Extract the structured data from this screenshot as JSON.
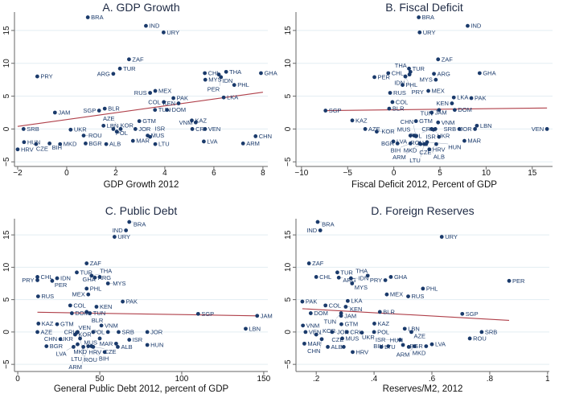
{
  "colors": {
    "point": "#1a3a6b",
    "fit": "#b0404a",
    "grid": "#e3edf2",
    "axis": "#666666"
  },
  "y_values": {
    "BRA": 17,
    "IND": 15.7,
    "URY": 14.7,
    "ZAF": 10.6,
    "TUR": 9.2,
    "THA": 8.7,
    "CHL": 8.5,
    "GHA": 8.5,
    "ARG": 8.4,
    "IDN": 8.3,
    "PRY": 8.0,
    "PER": 7.9,
    "MYS": 7.5,
    "PHL": 6.7,
    "MEX": 5.8,
    "RUS": 5.5,
    "LKA": 4.8,
    "PAK": 4.7,
    "COL": 4.1,
    "KEN": 3.9,
    "BLR": 3.1,
    "TUN": 2.9,
    "DOM": 2.9,
    "SGP": 2.8,
    "JAM": 2.5,
    "KAZ": 1.3,
    "GTM": 1.2,
    "VNM": 1.0,
    "LBN": 0.5,
    "SRB": 0,
    "JOR": 0,
    "CRI": 0,
    "VEN": 0,
    "AZE": 0,
    "POL": 0,
    "UKR": -0.1,
    "KOR": -0.4,
    "ROU": -1,
    "MUS": -1,
    "CHN": -1.1,
    "ISR": -1.2,
    "MAR": -1.8,
    "LVA": -1.9,
    "HUN": -2,
    "BIH": -2.2,
    "BGR": -2.2,
    "ARM": -2.2,
    "CZE": -2.3,
    "MKD": -2.3,
    "ALB": -2.3,
    "LTU": -2.3,
    "HRV": -3.1
  },
  "chart_data": [
    {
      "type": "scatter",
      "title": "A. GDP Growth",
      "xlabel": "GDP Growth 2012",
      "ylabel": "",
      "xlim": [
        -2.13,
        8.2
      ],
      "ylim": [
        -5.7,
        17.8
      ],
      "xticks": [
        -2,
        0,
        2,
        4,
        6,
        8
      ],
      "xtick_labels": [
        "−2",
        "0",
        "2",
        "4",
        "6",
        "8"
      ],
      "yticks": [
        -5,
        0,
        5,
        10,
        15
      ],
      "ytick_labels": [
        "−5",
        "0",
        "5",
        "10",
        "15"
      ],
      "fit": [
        [
          -2,
          0.4
        ],
        [
          8,
          5.6
        ]
      ],
      "x": {
        "BRA": 0.86,
        "IND": 3.23,
        "URY": 3.95,
        "ZAF": 2.54,
        "TUR": 2.17,
        "ARG": 1.9,
        "PRY": -1.2,
        "CHL": 5.63,
        "THA": 6.5,
        "IDN": 6.2,
        "GHA": 7.92,
        "PER": 6.29,
        "MYS": 5.65,
        "PHL": 6.83,
        "MEX": 3.61,
        "RUS": 3.4,
        "PAK": 4.35,
        "LKA": 6.4,
        "COL": 3.96,
        "KEN": 4.56,
        "BLR": 1.55,
        "SGP": 1.32,
        "TUN": 3.6,
        "DOM": 4.09,
        "JAM": -0.48,
        "GTM": 2.96,
        "KAZ": 5.1,
        "VNM": 5.26,
        "LBN": 1.5,
        "SRB": -1.76,
        "UKR": 0.16,
        "JOR": 2.8,
        "CRI": 5.12,
        "VEN": 5.64,
        "AZE": 2.2,
        "POL": 1.9,
        "KOR": 2.04,
        "ROU": 0.69,
        "MUS": 3.3,
        "ISR": 3.4,
        "CHN": 7.7,
        "HUN": -1.74,
        "CZE": -1.25,
        "BIH": -0.7,
        "MKD": -0.27,
        "BGR": 0.77,
        "ALB": 1.61,
        "MAR": 2.7,
        "LTU": 3.61,
        "LVA": 5.59,
        "ARM": 7.19,
        "HRV": -2.0
      }
    },
    {
      "type": "scatter",
      "title": "B. Fiscal Deficit",
      "xlabel": "Fiscal Deficit 2012, Percent of GDP",
      "ylabel": "",
      "xlim": [
        -10.6,
        17.2
      ],
      "ylim": [
        -5.7,
        17.8
      ],
      "xticks": [
        -10,
        -5,
        0,
        5,
        10,
        15
      ],
      "xtick_labels": [
        "−10",
        "−5",
        "0",
        "5",
        "10",
        "15"
      ],
      "yticks": [
        -5,
        0,
        5,
        10,
        15
      ],
      "ytick_labels": [
        "−5",
        "0",
        "5",
        "10",
        "15"
      ],
      "fit": [
        [
          -7.4,
          2.8
        ],
        [
          16.6,
          3.2
        ]
      ],
      "x": {
        "BRA": 2.7,
        "IND": 8.0,
        "URY": 2.8,
        "ZAF": 4.8,
        "TUR": 1.65,
        "THA": 1.8,
        "IDN": 1.7,
        "CHL": -0.6,
        "PER": -2.1,
        "PRY": 1.25,
        "ARG": 4.35,
        "GHA": 9.3,
        "MYS": 4.55,
        "PHL": 0.95,
        "MEX": 3.74,
        "RUS": -0.4,
        "LKA": 6.5,
        "PAK": 8.4,
        "KEN": 6.3,
        "COL": -0.15,
        "SGP": -7.4,
        "BLR": -0.5,
        "TUN": 4.9,
        "DOM": 6.6,
        "JAM": 4.1,
        "KAZ": -4.5,
        "GTM": 2.4,
        "VNM": 4.8,
        "LBN": 9.0,
        "JOR": 8.8,
        "SRB": 7.1,
        "VEN": 16.6,
        "AZE": -3.1,
        "KOR": -1.85,
        "ISR": 4.9,
        "MAR": 7.65,
        "HRV": 3.85,
        "LVA": -0.05,
        "CRI": 4.5,
        "POL": 4.1,
        "UKR": 4.3,
        "MUS": 2.2,
        "ROU": 1.8,
        "CHN": 2.4,
        "HUN": 3.6,
        "CZE": 4.6,
        "ALB": 3.5,
        "BGR": 0.4,
        "LTU": 3.3,
        "BIH": 1.8,
        "MKD": 2.9,
        "ARM": 2.8
      }
    },
    {
      "type": "scatter",
      "title": "C. Public Debt",
      "xlabel": "General Public Debt 2012, percent of GDP",
      "ylabel": "",
      "xlim": [
        -2,
        152.5
      ],
      "ylim": [
        -6.1,
        17.5
      ],
      "xticks": [
        0,
        50,
        100,
        150
      ],
      "xtick_labels": [
        "0",
        "50",
        "100",
        "150"
      ],
      "yticks": [
        -5,
        0,
        5,
        10,
        15
      ],
      "ytick_labels": [
        "−5",
        "0",
        "5",
        "10",
        "15"
      ],
      "fit": [
        [
          12,
          3.05
        ],
        [
          146,
          2.5
        ]
      ],
      "x": {
        "BRA": 68,
        "IND": 66,
        "URY": 59,
        "ZAF": 42,
        "TUR": 36,
        "THA": 45,
        "ARG": 47,
        "GHA": 50,
        "CHL": 12,
        "PRY": 12,
        "IDN": 24,
        "PER": 21,
        "MYS": 55,
        "PHL": 42,
        "MEX": 43,
        "RUS": 12.4,
        "PAK": 64,
        "COL": 32,
        "KEN": 48,
        "SGP": 110,
        "JAM": 146,
        "LBN": 139,
        "DOM": 33,
        "BLR": 42,
        "TUN": 44,
        "KAZ": 12.6,
        "GTM": 24,
        "VNM": 51,
        "AZE": 12,
        "VEN": 46,
        "POL": 55,
        "SRB": 61.5,
        "JOR": 79,
        "CHN": 26,
        "ROU": 38,
        "MUS": 50,
        "ISR": 68,
        "MAR": 60,
        "ALB": 61,
        "HUN": 79,
        "BGR": 17.5,
        "HRV": 53,
        "MKD": 34,
        "LVA": 36.5,
        "CZE": 46,
        "KOR": 35,
        "CRI": 36.5,
        "UKR": 36,
        "LTU": 40,
        "BIH": 45,
        "ARM": 43
      }
    },
    {
      "type": "scatter",
      "title": "D. Foreign Reserves",
      "xlabel": "Reserves/M2, 2012",
      "ylabel": "",
      "xlim": [
        0.13,
        1.006
      ],
      "ylim": [
        -6.1,
        17.5
      ],
      "xticks": [
        0.2,
        0.4,
        0.6,
        0.8,
        1
      ],
      "xtick_labels": [
        ".2",
        ".4",
        ".6",
        ".8",
        "1"
      ],
      "yticks": [
        -5,
        0,
        5,
        10,
        15
      ],
      "ytick_labels": [
        "−5",
        "0",
        "5",
        "10",
        "15"
      ],
      "fit": [
        [
          0.152,
          3.6
        ],
        [
          0.867,
          1.8
        ]
      ],
      "x": {
        "BRA": 0.205,
        "IND": 0.214,
        "URY": 0.634,
        "ZAF": 0.175,
        "TUR": 0.273,
        "CHL": 0.2,
        "ARG": 0.278,
        "IDN": 0.32,
        "THA": 0.378,
        "PRY": 0.439,
        "GHA": 0.458,
        "MYS": 0.324,
        "PER": 0.867,
        "PHL": 0.569,
        "MEX": 0.444,
        "RUS": 0.518,
        "PAK": 0.152,
        "LKA": 0.309,
        "COL": 0.232,
        "KEN": 0.302,
        "BLR": 0.42,
        "SGP": 0.705,
        "DOM": 0.181,
        "TUN": 0.286,
        "JAM": 0.286,
        "GTM": 0.287,
        "KAZ": 0.401,
        "VNM": 0.154,
        "VEN": 0.163,
        "KOR": 0.2,
        "CHN": 0.219,
        "JOR": 0.255,
        "CRI": 0.306,
        "MUS": 0.29,
        "POL": 0.4,
        "UKR": 0.358,
        "LBN": 0.506,
        "AZE": 0.529,
        "SRB": 0.772,
        "ROU": 0.731,
        "MAR": 0.159,
        "ALB": 0.24,
        "CZE": 0.295,
        "HRV": 0.326,
        "LTU": 0.425,
        "BIH": 0.449,
        "HUN": 0.5,
        "LVA": 0.6,
        "ARM": 0.54,
        "MKD": 0.52,
        "BGR": 0.58,
        "ISR": 0.49
      }
    }
  ]
}
